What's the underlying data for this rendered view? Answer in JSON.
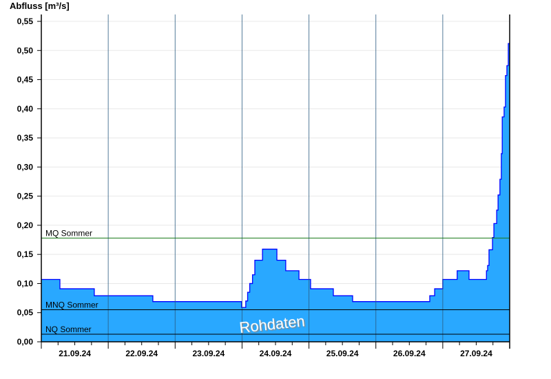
{
  "chart_data": {
    "type": "area",
    "ylabel": "Abfluss [m³/s]",
    "ylim": [
      0,
      0.55
    ],
    "yticks": [
      "0,00",
      "0,05",
      "0,10",
      "0,15",
      "0,20",
      "0,25",
      "0,30",
      "0,35",
      "0,40",
      "0,45",
      "0,50",
      "0,55"
    ],
    "xlim": [
      "21.09.24 00:00",
      "28.09.24 00:00"
    ],
    "xticks": [
      "21.09.24",
      "22.09.24",
      "23.09.24",
      "24.09.24",
      "25.09.24",
      "26.09.24",
      "27.09.24"
    ],
    "grid": true,
    "watermark": "Rohdaten",
    "fill_color": "#29a8ff",
    "line_color": "#0000ff",
    "step": true,
    "points": [
      [
        "21.09.24 00:00",
        0.107
      ],
      [
        "21.09.24 06:40",
        0.091
      ],
      [
        "21.09.24 19:00",
        0.079
      ],
      [
        "22.09.24 16:00",
        0.069
      ],
      [
        "23.09.24 23:50",
        0.059
      ],
      [
        "24.09.24 01:20",
        0.07
      ],
      [
        "24.09.24 02:00",
        0.085
      ],
      [
        "24.09.24 02:45",
        0.1
      ],
      [
        "24.09.24 03:45",
        0.115
      ],
      [
        "24.09.24 04:35",
        0.14
      ],
      [
        "24.09.24 07:20",
        0.159
      ],
      [
        "24.09.24 12:30",
        0.14
      ],
      [
        "24.09.24 15:40",
        0.122
      ],
      [
        "24.09.24 20:25",
        0.107
      ],
      [
        "25.09.24 00:35",
        0.091
      ],
      [
        "25.09.24 08:45",
        0.079
      ],
      [
        "25.09.24 15:40",
        0.069
      ],
      [
        "26.09.24 19:20",
        0.079
      ],
      [
        "26.09.24 21:05",
        0.091
      ],
      [
        "27.09.24 00:00",
        0.107
      ],
      [
        "27.09.24 05:10",
        0.122
      ],
      [
        "27.09.24 09:25",
        0.107
      ],
      [
        "27.09.24 15:40",
        0.122
      ],
      [
        "27.09.24 16:05",
        0.131
      ],
      [
        "27.09.24 16:35",
        0.158
      ],
      [
        "27.09.24 17:50",
        0.179
      ],
      [
        "27.09.24 18:20",
        0.203
      ],
      [
        "27.09.24 19:20",
        0.226
      ],
      [
        "27.09.24 19:50",
        0.252
      ],
      [
        "27.09.24 20:30",
        0.279
      ],
      [
        "27.09.24 21:00",
        0.323
      ],
      [
        "27.09.24 21:20",
        0.386
      ],
      [
        "27.09.24 22:00",
        0.403
      ],
      [
        "27.09.24 22:30",
        0.457
      ],
      [
        "27.09.24 23:00",
        0.474
      ],
      [
        "27.09.24 23:30",
        0.512
      ],
      [
        "28.09.24 00:00",
        0.512
      ]
    ],
    "reference_lines": [
      {
        "label": "MQ Sommer",
        "value": 0.178,
        "color": "#1a7a1a"
      },
      {
        "label": "MNQ Sommer",
        "value": 0.055,
        "color": "#000000"
      },
      {
        "label": "NQ Sommer",
        "value": 0.013,
        "color": "#000000"
      }
    ]
  }
}
